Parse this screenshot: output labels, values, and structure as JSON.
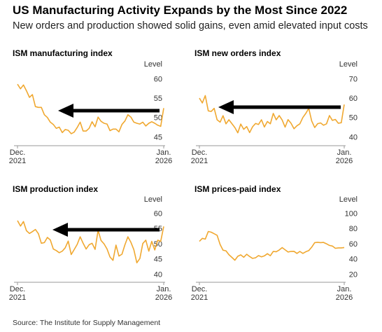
{
  "title": "US Manufacturing Activity Expands by the Most Since 2022",
  "subtitle": "New orders and production showed solid gains, even amid elevated input costs",
  "source": "Source: The Institute for Supply Management",
  "chart_data": [
    {
      "type": "line",
      "title": "ISM manufacturing index",
      "y_label": "Level",
      "categories": [
        "Dec. 2021",
        null,
        null,
        null,
        null,
        null,
        null,
        null,
        null,
        null,
        null,
        null,
        null,
        null,
        null,
        null,
        null,
        null,
        null,
        null,
        null,
        null,
        null,
        null,
        null,
        null,
        null,
        null,
        null,
        null,
        null,
        null,
        null,
        null,
        null,
        null,
        null,
        null,
        null,
        null,
        null,
        null,
        null,
        null,
        null,
        null,
        null,
        null,
        null,
        "Jan. 2026"
      ],
      "series": [
        {
          "name": "ISM manufacturing index",
          "color": "#f0a830",
          "values": [
            58.8,
            57.6,
            58.6,
            57.1,
            55.4,
            56.1,
            53.0,
            52.8,
            52.8,
            50.9,
            50.2,
            49.0,
            48.4,
            47.4,
            47.7,
            46.3,
            47.1,
            46.9,
            46.0,
            46.4,
            47.6,
            49.0,
            46.7,
            46.7,
            47.4,
            49.1,
            47.8,
            50.3,
            49.2,
            48.7,
            48.5,
            46.8,
            47.2,
            47.2,
            46.5,
            48.4,
            49.3,
            50.9,
            50.3,
            49.0,
            48.7,
            48.5,
            49.0,
            48.0,
            48.7,
            49.1,
            48.7,
            48.2,
            47.9,
            52.6
          ]
        }
      ],
      "ylim": [
        44,
        61
      ],
      "yticks": [
        45,
        50,
        55,
        60
      ]
    },
    {
      "type": "line",
      "title": "ISM new orders index",
      "y_label": "Level",
      "categories": [
        "Dec. 2021",
        null,
        null,
        null,
        null,
        null,
        null,
        null,
        null,
        null,
        null,
        null,
        null,
        null,
        null,
        null,
        null,
        null,
        null,
        null,
        null,
        null,
        null,
        null,
        null,
        null,
        null,
        null,
        null,
        null,
        null,
        null,
        null,
        null,
        null,
        null,
        null,
        null,
        null,
        null,
        null,
        null,
        null,
        null,
        null,
        null,
        null,
        null,
        null,
        "Jan. 2026"
      ],
      "series": [
        {
          "name": "ISM new orders index",
          "color": "#f0a830",
          "values": [
            60.4,
            57.9,
            61.7,
            53.8,
            53.5,
            55.1,
            49.2,
            48.0,
            51.3,
            47.1,
            49.2,
            47.2,
            45.2,
            42.5,
            47.0,
            44.3,
            45.7,
            42.6,
            45.6,
            47.3,
            46.8,
            49.2,
            45.5,
            48.3,
            47.1,
            52.5,
            49.2,
            51.4,
            49.1,
            45.4,
            49.3,
            47.4,
            44.6,
            46.1,
            47.1,
            50.4,
            52.5,
            55.1,
            48.6,
            45.2,
            47.2,
            47.6,
            46.4,
            47.1,
            51.4,
            48.9,
            49.4,
            47.4,
            47.7,
            57.1
          ]
        }
      ],
      "ylim": [
        38,
        72
      ],
      "yticks": [
        40,
        50,
        60,
        70
      ]
    },
    {
      "type": "line",
      "title": "ISM production index",
      "y_label": "Level",
      "categories": [
        "Dec. 2021",
        null,
        null,
        null,
        null,
        null,
        null,
        null,
        null,
        null,
        null,
        null,
        null,
        null,
        null,
        null,
        null,
        null,
        null,
        null,
        null,
        null,
        null,
        null,
        null,
        null,
        null,
        null,
        null,
        null,
        null,
        null,
        null,
        null,
        null,
        null,
        null,
        null,
        null,
        null,
        null,
        null,
        null,
        null,
        null,
        null,
        null,
        null,
        null,
        "Jan. 2026"
      ],
      "series": [
        {
          "name": "ISM production index",
          "color": "#f0a830",
          "values": [
            57.8,
            56.0,
            57.5,
            54.5,
            53.6,
            54.2,
            54.9,
            53.5,
            50.4,
            50.6,
            52.3,
            51.5,
            48.5,
            48.0,
            47.3,
            47.8,
            48.9,
            51.1,
            46.7,
            48.3,
            50.0,
            52.5,
            50.4,
            48.5,
            49.9,
            50.4,
            48.4,
            54.6,
            51.3,
            50.2,
            48.5,
            45.9,
            44.8,
            49.8,
            46.2,
            46.8,
            49.9,
            52.5,
            50.7,
            48.3,
            44.0,
            45.4,
            50.3,
            51.4,
            47.8,
            51.0,
            48.2,
            51.4,
            51.0,
            55.9
          ]
        }
      ],
      "ylim": [
        39,
        61
      ],
      "yticks": [
        40,
        45,
        50,
        55,
        60
      ]
    },
    {
      "type": "line",
      "title": "ISM prices-paid index",
      "y_label": "Level",
      "categories": [
        "Dec. 2021",
        null,
        null,
        null,
        null,
        null,
        null,
        null,
        null,
        null,
        null,
        null,
        null,
        null,
        null,
        null,
        null,
        null,
        null,
        null,
        null,
        null,
        null,
        null,
        null,
        null,
        null,
        null,
        null,
        null,
        null,
        null,
        null,
        null,
        null,
        null,
        null,
        null,
        null,
        null,
        null,
        null,
        null,
        null,
        null,
        null,
        null,
        null,
        null,
        "Jan. 2026"
      ],
      "series": [
        {
          "name": "ISM prices-paid index",
          "color": "#f0a830",
          "values": [
            64.0,
            68.0,
            67.0,
            77.0,
            76.0,
            74.0,
            72.0,
            60.0,
            52.5,
            51.7,
            46.6,
            43.0,
            39.4,
            44.5,
            46.3,
            43.2,
            47.2,
            44.2,
            41.8,
            42.6,
            45.4,
            43.8,
            45.1,
            47.9,
            45.2,
            50.9,
            50.5,
            52.8,
            55.9,
            53.0,
            50.1,
            50.9,
            51.0,
            48.3,
            50.8,
            48.3,
            50.5,
            51.9,
            56.4,
            62.4,
            62.8,
            62.4,
            62.7,
            60.8,
            58.7,
            57.9,
            55.0,
            55.5,
            55.5,
            56.0
          ]
        }
      ],
      "ylim": [
        16,
        104
      ],
      "yticks": [
        20,
        40,
        60,
        80,
        100
      ]
    }
  ]
}
